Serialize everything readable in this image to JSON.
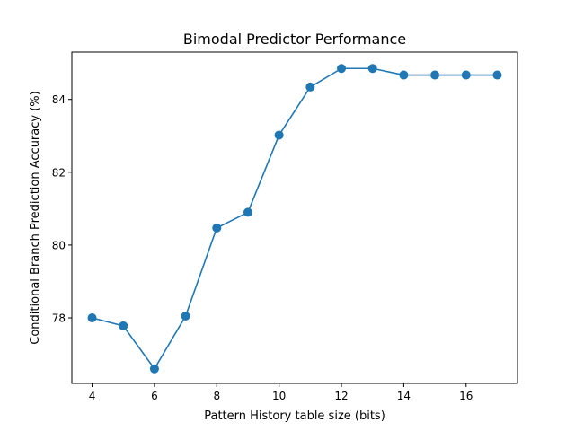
{
  "chart_data": {
    "type": "line",
    "title": "Bimodal Predictor Performance",
    "xlabel": "Pattern History table size (bits)",
    "ylabel": "Conditional Branch Prediction Accuracy (%)",
    "x": [
      4,
      5,
      6,
      7,
      8,
      9,
      10,
      11,
      12,
      13,
      14,
      15,
      16,
      17
    ],
    "series": [
      {
        "values": [
          78.0,
          77.78,
          76.6,
          78.05,
          80.47,
          80.9,
          83.02,
          84.34,
          84.85,
          84.85,
          84.67,
          84.67,
          84.67,
          84.67
        ],
        "color": "#1f77b4",
        "marker": "circle"
      }
    ],
    "xlim": [
      3.35,
      17.65
    ],
    "ylim": [
      76.2,
      85.3
    ],
    "xticks": [
      4,
      6,
      8,
      10,
      12,
      14,
      16
    ],
    "yticks": [
      78,
      80,
      82,
      84
    ],
    "grid": false,
    "legend": "none"
  }
}
